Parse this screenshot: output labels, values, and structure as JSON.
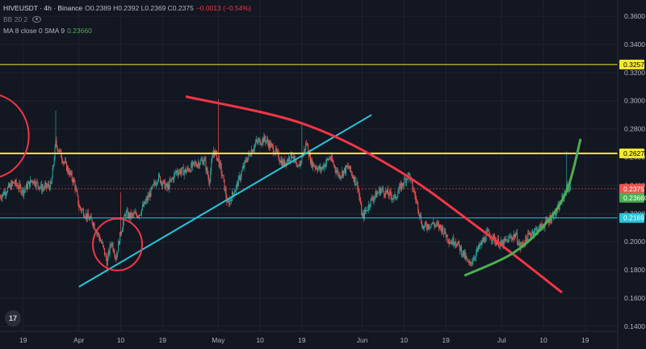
{
  "legend": {
    "symbol": "HIVEUSDT · 4h · Binance",
    "ohlc": "O0.2389 H0.2392 L0.2369 C0.2375",
    "change": "−0.0013 (−0.54%)",
    "bb": "BB 20 2",
    "ma_label": "MA 8 close 0 SMA 9",
    "ma_value": "0.23660"
  },
  "logo_text": "17",
  "colors": {
    "background": "#131722",
    "up": "#26a69a",
    "down": "#ef5350",
    "yellow": "#f5ea2f",
    "cyan": "#26c6da",
    "red_arc": "#f23645",
    "green_arc": "#4caf50",
    "grid": "#1e222d",
    "axis_text": "#b2b5be"
  },
  "chart_data": {
    "type": "candlestick",
    "title": "HIVEUSDT · 4h · Binance",
    "y_ticks": [
      "0.3600",
      "0.3400",
      "0.3200",
      "0.3000",
      "0.2800",
      "0.2600",
      "0.2400",
      "0.2200",
      "0.2000",
      "0.1800",
      "0.1600",
      "0.1400"
    ],
    "ylim": [
      0.1365,
      0.3715
    ],
    "x_ticks": [
      "19",
      "Apr",
      "10",
      "19",
      "May",
      "10",
      "19",
      "Jun",
      "10",
      "19",
      "Jul",
      "10",
      "19"
    ],
    "x_range_days": [
      -5,
      128
    ],
    "x_tick_days": [
      0,
      12,
      21,
      30,
      42,
      51,
      60,
      73,
      82,
      91,
      103,
      112,
      121
    ],
    "close_path": [
      [
        -5,
        0.232
      ],
      [
        -2,
        0.242
      ],
      [
        0,
        0.236
      ],
      [
        2,
        0.244
      ],
      [
        4,
        0.238
      ],
      [
        6,
        0.24
      ],
      [
        7,
        0.27
      ],
      [
        9,
        0.255
      ],
      [
        11,
        0.242
      ],
      [
        12,
        0.225
      ],
      [
        14,
        0.217
      ],
      [
        15,
        0.214
      ],
      [
        17,
        0.198
      ],
      [
        18,
        0.186
      ],
      [
        19,
        0.2
      ],
      [
        20,
        0.189
      ],
      [
        21,
        0.207
      ],
      [
        22,
        0.22
      ],
      [
        23,
        0.218
      ],
      [
        25,
        0.22
      ],
      [
        27,
        0.232
      ],
      [
        29,
        0.246
      ],
      [
        31,
        0.238
      ],
      [
        33,
        0.25
      ],
      [
        35,
        0.25
      ],
      [
        37,
        0.255
      ],
      [
        39,
        0.258
      ],
      [
        40,
        0.243
      ],
      [
        41,
        0.265
      ],
      [
        42,
        0.258
      ],
      [
        43,
        0.245
      ],
      [
        44,
        0.226
      ],
      [
        46,
        0.24
      ],
      [
        48,
        0.258
      ],
      [
        50,
        0.27
      ],
      [
        52,
        0.273
      ],
      [
        54,
        0.265
      ],
      [
        56,
        0.255
      ],
      [
        58,
        0.262
      ],
      [
        59,
        0.25
      ],
      [
        61,
        0.27
      ],
      [
        62,
        0.256
      ],
      [
        64,
        0.251
      ],
      [
        66,
        0.26
      ],
      [
        68,
        0.247
      ],
      [
        70,
        0.253
      ],
      [
        72,
        0.24
      ],
      [
        73,
        0.217
      ],
      [
        75,
        0.23
      ],
      [
        77,
        0.237
      ],
      [
        80,
        0.231
      ],
      [
        82,
        0.243
      ],
      [
        83,
        0.248
      ],
      [
        85,
        0.225
      ],
      [
        86,
        0.21
      ],
      [
        88,
        0.213
      ],
      [
        90,
        0.21
      ],
      [
        92,
        0.2
      ],
      [
        93,
        0.201
      ],
      [
        95,
        0.19
      ],
      [
        96,
        0.183
      ],
      [
        98,
        0.195
      ],
      [
        100,
        0.206
      ],
      [
        102,
        0.2
      ],
      [
        103,
        0.198
      ],
      [
        105,
        0.203
      ],
      [
        106,
        0.205
      ],
      [
        107,
        0.196
      ],
      [
        109,
        0.205
      ],
      [
        110,
        0.208
      ],
      [
        111,
        0.209
      ],
      [
        113,
        0.215
      ],
      [
        115,
        0.222
      ],
      [
        117,
        0.238
      ],
      [
        118,
        0.2375
      ]
    ],
    "spikes": [
      {
        "day": 7,
        "high": 0.293
      },
      {
        "day": 18,
        "low": 0.178
      },
      {
        "day": 21,
        "high": 0.235
      },
      {
        "day": 42,
        "high": 0.301
      },
      {
        "day": 60,
        "high": 0.283
      },
      {
        "day": 117,
        "high": 0.264
      }
    ],
    "horizontal_lines": [
      {
        "price": 0.3257,
        "label": "0.3257",
        "color": "#f5ea2f",
        "width": 1
      },
      {
        "price": 0.2627,
        "label": "0.2627",
        "color": "#f5ea2f",
        "width": 2
      },
      {
        "price": 0.2169,
        "label": "0.2169",
        "color": "#26c6da",
        "width": 1
      },
      {
        "price": 0.2375,
        "label": "0.2375",
        "color": "#ef5350",
        "width": 0.6
      },
      {
        "price": 0.2366,
        "label": "0.23660",
        "color": "#4caf50",
        "width": 0
      }
    ],
    "trendline": {
      "from": [
        12,
        0.168
      ],
      "to": [
        75,
        0.29
      ],
      "color": "#26c6da"
    },
    "red_arc": {
      "points": [
        [
          35,
          0.303
        ],
        [
          60,
          0.284
        ],
        [
          80,
          0.252
        ],
        [
          98,
          0.21
        ],
        [
          116,
          0.164
        ]
      ],
      "color": "#f23645"
    },
    "green_arc": {
      "points": [
        [
          95,
          0.176
        ],
        [
          105,
          0.191
        ],
        [
          112,
          0.211
        ],
        [
          117,
          0.236
        ],
        [
          120,
          0.273
        ]
      ],
      "color": "#4caf50"
    },
    "circles": [
      {
        "center": [
          20.3,
          0.198
        ],
        "radius_days": 5.3,
        "color": "#f23645"
      },
      {
        "center": [
          -7.5,
          0.275
        ],
        "radius_days": 8.7,
        "color": "#f23645"
      }
    ]
  }
}
